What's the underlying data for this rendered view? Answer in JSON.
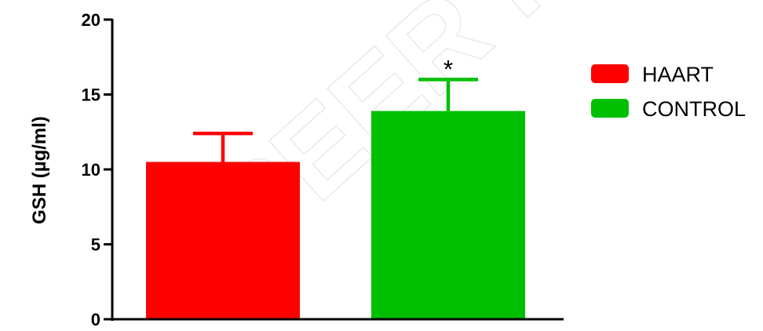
{
  "chart_data": {
    "type": "bar",
    "categories": [
      "HAART",
      "CONTROL"
    ],
    "values": [
      10.5,
      13.9
    ],
    "error_upper": [
      12.4,
      16.0
    ],
    "colors": [
      "#ff0000",
      "#00bf00"
    ],
    "ylabel": "GSH (µg/ml)",
    "xlabel": "",
    "ylim": [
      0,
      20
    ],
    "yticks": [
      0,
      5,
      10,
      15,
      20
    ],
    "annotations": [
      {
        "category": "CONTROL",
        "text": "*"
      }
    ],
    "legend": {
      "placement": "right",
      "entries": [
        {
          "label": "HAART",
          "color": "#ff0000"
        },
        {
          "label": "CONTROL",
          "color": "#00bf00"
        }
      ]
    },
    "grid": false
  },
  "watermark": {
    "text": "PEER R",
    "icon": "watermark-icon"
  }
}
